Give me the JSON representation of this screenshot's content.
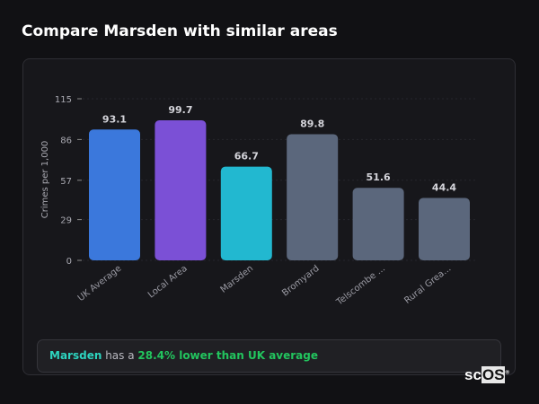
{
  "header": {
    "title": "Compare Marsden with similar areas"
  },
  "chart_data": {
    "type": "bar",
    "title": "",
    "xlabel": "",
    "ylabel": "Crimes per 1,000",
    "ylim": [
      0,
      115
    ],
    "yticks": [
      0,
      29,
      57,
      86,
      115
    ],
    "grid": true,
    "categories": [
      "UK Average",
      "Local Area",
      "Marsden",
      "Bromyard",
      "Telscombe ...",
      "Rural Grea..."
    ],
    "values": [
      93.1,
      99.7,
      66.7,
      89.8,
      51.6,
      44.4
    ],
    "colors": [
      "#3b78dc",
      "#7b50d6",
      "#22b8d0",
      "#5b677c",
      "#5b677c",
      "#5b677c"
    ]
  },
  "summary": {
    "area": "Marsden",
    "middle": " has a ",
    "comparison": "28.4% lower than UK average",
    "area_color": "#2dd4bf",
    "comparison_color": "#22c55e"
  },
  "logo": {
    "text_a": "sc",
    "text_b": "OS",
    "mark": "®"
  }
}
